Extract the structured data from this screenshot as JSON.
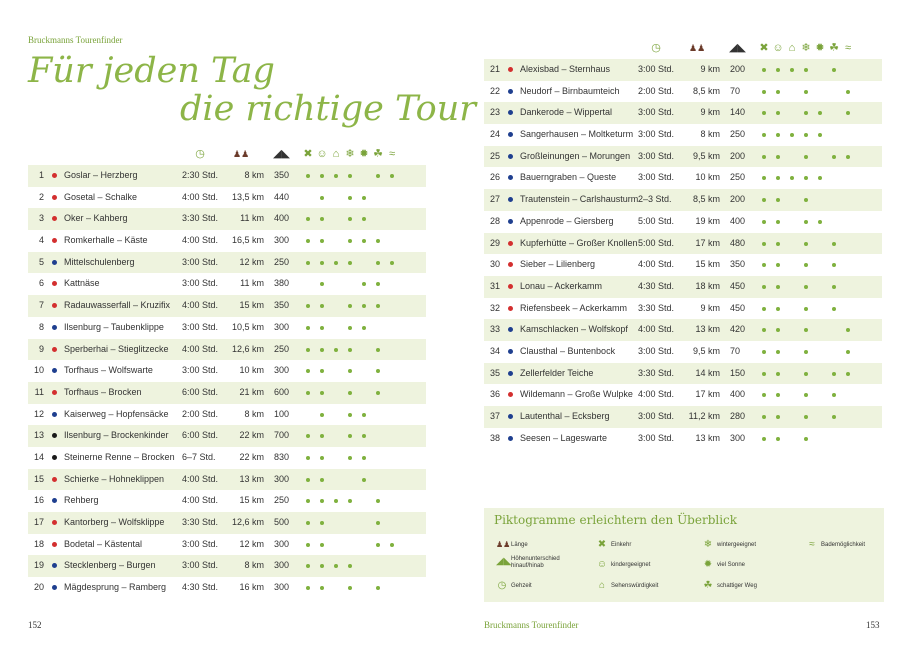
{
  "header_left": "Bruckmanns Tourenfinder",
  "title_line1": "Für jeden Tag",
  "title_line2": "die richtige Tour",
  "footer_left_page": "152",
  "footer_center": "Bruckmanns Tourenfinder",
  "footer_right_page": "153",
  "colors": {
    "accent": "#8db548",
    "row_alt": "#eef3de",
    "feature_dot": "#7fb13e",
    "red": "#d32f2f",
    "blue": "#1f3f8f",
    "black": "#1a1a1a"
  },
  "header_icons": [
    "clock-icon",
    "hikers-icon",
    "mountain-icon",
    "cutlery-icon",
    "smiley-icon",
    "landmark-icon",
    "snowflake-icon",
    "sun-icon",
    "shade-tree-icon",
    "bathing-icon"
  ],
  "tours": [
    {
      "n": "1",
      "color": "red",
      "name": "Goslar – Herzberg",
      "time": "2:30 Std.",
      "km": "8 km",
      "hm": "350",
      "f": [
        1,
        1,
        1,
        1,
        0,
        1,
        1
      ]
    },
    {
      "n": "2",
      "color": "red",
      "name": "Gosetal – Schalke",
      "time": "4:00 Std.",
      "km": "13,5 km",
      "hm": "440",
      "f": [
        0,
        1,
        0,
        1,
        1,
        0,
        0
      ]
    },
    {
      "n": "3",
      "color": "red",
      "name": "Oker – Kahberg",
      "time": "3:30 Std.",
      "km": "11 km",
      "hm": "400",
      "f": [
        1,
        1,
        0,
        1,
        1,
        0,
        0
      ]
    },
    {
      "n": "4",
      "color": "red",
      "name": "Romkerhalle – Käste",
      "time": "4:00 Std.",
      "km": "16,5 km",
      "hm": "300",
      "f": [
        1,
        1,
        0,
        1,
        1,
        1,
        0
      ]
    },
    {
      "n": "5",
      "color": "blue",
      "name": "Mittelschulenberg",
      "time": "3:00 Std.",
      "km": "12 km",
      "hm": "250",
      "f": [
        1,
        1,
        1,
        1,
        0,
        1,
        1
      ]
    },
    {
      "n": "6",
      "color": "red",
      "name": "Kattnäse",
      "time": "3:00 Std.",
      "km": "11 km",
      "hm": "380",
      "f": [
        0,
        1,
        0,
        0,
        1,
        1,
        0
      ]
    },
    {
      "n": "7",
      "color": "red",
      "name": "Radauwasserfall – Kruzifix",
      "time": "4:00 Std.",
      "km": "15 km",
      "hm": "350",
      "f": [
        1,
        1,
        0,
        1,
        1,
        1,
        0
      ]
    },
    {
      "n": "8",
      "color": "blue",
      "name": "Ilsenburg – Taubenklippe",
      "time": "3:00 Std.",
      "km": "10,5 km",
      "hm": "300",
      "f": [
        1,
        1,
        0,
        1,
        1,
        0,
        0
      ]
    },
    {
      "n": "9",
      "color": "red",
      "name": "Sperberhai – Stieglitzecke",
      "time": "4:00 Std.",
      "km": "12,6 km",
      "hm": "250",
      "f": [
        1,
        1,
        1,
        1,
        0,
        1,
        0
      ]
    },
    {
      "n": "10",
      "color": "blue",
      "name": "Torfhaus – Wolfswarte",
      "time": "3:00 Std.",
      "km": "10 km",
      "hm": "300",
      "f": [
        1,
        1,
        0,
        1,
        0,
        1,
        0
      ]
    },
    {
      "n": "11",
      "color": "red",
      "name": "Torfhaus – Brocken",
      "time": "6:00 Std.",
      "km": "21 km",
      "hm": "600",
      "f": [
        1,
        1,
        0,
        1,
        0,
        1,
        0
      ]
    },
    {
      "n": "12",
      "color": "blue",
      "name": "Kaiserweg – Hopfensäcke",
      "time": "2:00 Std.",
      "km": "8 km",
      "hm": "100",
      "f": [
        0,
        1,
        0,
        1,
        1,
        0,
        0
      ]
    },
    {
      "n": "13",
      "color": "black",
      "name": "Ilsenburg – Brockenkinder",
      "time": "6:00 Std.",
      "km": "22 km",
      "hm": "700",
      "f": [
        1,
        1,
        0,
        1,
        1,
        0,
        0
      ]
    },
    {
      "n": "14",
      "color": "black",
      "name": "Steinerne Renne – Brocken",
      "time": "6–7 Std.",
      "km": "22 km",
      "hm": "830",
      "f": [
        1,
        1,
        0,
        1,
        1,
        0,
        0
      ]
    },
    {
      "n": "15",
      "color": "red",
      "name": "Schierke – Hohneklippen",
      "time": "4:00 Std.",
      "km": "13 km",
      "hm": "300",
      "f": [
        1,
        1,
        0,
        0,
        1,
        0,
        0
      ]
    },
    {
      "n": "16",
      "color": "blue",
      "name": "Rehberg",
      "time": "4:00 Std.",
      "km": "15 km",
      "hm": "250",
      "f": [
        1,
        1,
        1,
        1,
        0,
        1,
        0
      ]
    },
    {
      "n": "17",
      "color": "red",
      "name": "Kantorberg – Wolfsklippe",
      "time": "3:30 Std.",
      "km": "12,6 km",
      "hm": "500",
      "f": [
        1,
        1,
        0,
        0,
        0,
        1,
        0
      ]
    },
    {
      "n": "18",
      "color": "red",
      "name": "Bodetal – Kästental",
      "time": "3:00 Std.",
      "km": "12 km",
      "hm": "300",
      "f": [
        1,
        1,
        0,
        0,
        0,
        1,
        1
      ]
    },
    {
      "n": "19",
      "color": "blue",
      "name": "Stecklenberg – Burgen",
      "time": "3:00 Std.",
      "km": "8 km",
      "hm": "300",
      "f": [
        1,
        1,
        1,
        1,
        0,
        0,
        0
      ]
    },
    {
      "n": "20",
      "color": "blue",
      "name": "Mägdesprung – Ramberg",
      "time": "4:30 Std.",
      "km": "16 km",
      "hm": "300",
      "f": [
        1,
        1,
        0,
        1,
        0,
        1,
        0
      ]
    },
    {
      "n": "21",
      "color": "red",
      "name": "Alexisbad – Sternhaus",
      "time": "3:00 Std.",
      "km": "9 km",
      "hm": "200",
      "f": [
        1,
        1,
        1,
        1,
        0,
        1,
        0
      ]
    },
    {
      "n": "22",
      "color": "blue",
      "name": "Neudorf – Birnbaumteich",
      "time": "2:00 Std.",
      "km": "8,5 km",
      "hm": "70",
      "f": [
        1,
        1,
        0,
        1,
        0,
        0,
        1
      ]
    },
    {
      "n": "23",
      "color": "blue",
      "name": "Dankerode – Wippertal",
      "time": "3:00 Std.",
      "km": "9 km",
      "hm": "140",
      "f": [
        1,
        1,
        0,
        1,
        1,
        0,
        1
      ]
    },
    {
      "n": "24",
      "color": "blue",
      "name": "Sangerhausen – Moltketurm",
      "time": "3:00 Std.",
      "km": "8 km",
      "hm": "250",
      "f": [
        1,
        1,
        1,
        1,
        1,
        0,
        0
      ]
    },
    {
      "n": "25",
      "color": "blue",
      "name": "Großleinungen – Morungen",
      "time": "3:00 Std.",
      "km": "9,5 km",
      "hm": "200",
      "f": [
        1,
        1,
        0,
        1,
        0,
        1,
        1
      ]
    },
    {
      "n": "26",
      "color": "blue",
      "name": "Bauerngraben – Queste",
      "time": "3:00 Std.",
      "km": "10 km",
      "hm": "250",
      "f": [
        1,
        1,
        1,
        1,
        1,
        0,
        0
      ]
    },
    {
      "n": "27",
      "color": "blue",
      "name": "Trautenstein – Carlshausturm",
      "time": "2–3 Std.",
      "km": "8,5 km",
      "hm": "200",
      "f": [
        1,
        1,
        0,
        1,
        0,
        0,
        0
      ]
    },
    {
      "n": "28",
      "color": "blue",
      "name": "Appenrode – Giersberg",
      "time": "5:00 Std.",
      "km": "19 km",
      "hm": "400",
      "f": [
        1,
        1,
        0,
        1,
        1,
        0,
        0
      ]
    },
    {
      "n": "29",
      "color": "red",
      "name": "Kupferhütte – Großer Knollen",
      "time": "5:00 Std.",
      "km": "17 km",
      "hm": "480",
      "f": [
        1,
        1,
        0,
        1,
        0,
        1,
        0
      ]
    },
    {
      "n": "30",
      "color": "red",
      "name": "Sieber – Lilienberg",
      "time": "4:00 Std.",
      "km": "15 km",
      "hm": "350",
      "f": [
        1,
        1,
        0,
        1,
        0,
        1,
        0
      ]
    },
    {
      "n": "31",
      "color": "red",
      "name": "Lonau – Ackerkamm",
      "time": "4:30 Std.",
      "km": "18 km",
      "hm": "450",
      "f": [
        1,
        1,
        0,
        1,
        0,
        1,
        0
      ]
    },
    {
      "n": "32",
      "color": "red",
      "name": "Riefensbeek – Ackerkamm",
      "time": "3:30 Std.",
      "km": "9 km",
      "hm": "450",
      "f": [
        1,
        1,
        0,
        1,
        0,
        1,
        0
      ]
    },
    {
      "n": "33",
      "color": "blue",
      "name": "Kamschlacken – Wolfskopf",
      "time": "4:00 Std.",
      "km": "13 km",
      "hm": "420",
      "f": [
        1,
        1,
        0,
        1,
        0,
        0,
        1
      ]
    },
    {
      "n": "34",
      "color": "blue",
      "name": "Clausthal – Buntenbock",
      "time": "3:00 Std.",
      "km": "9,5 km",
      "hm": "70",
      "f": [
        1,
        1,
        0,
        1,
        0,
        0,
        1
      ]
    },
    {
      "n": "35",
      "color": "blue",
      "name": "Zellerfelder Teiche",
      "time": "3:30 Std.",
      "km": "14 km",
      "hm": "150",
      "f": [
        1,
        1,
        0,
        1,
        0,
        1,
        1
      ]
    },
    {
      "n": "36",
      "color": "red",
      "name": "Wildemann – Große Wulpke",
      "time": "4:00 Std.",
      "km": "17 km",
      "hm": "400",
      "f": [
        1,
        1,
        0,
        1,
        0,
        1,
        0
      ]
    },
    {
      "n": "37",
      "color": "blue",
      "name": "Lautenthal – Ecksberg",
      "time": "3:00 Std.",
      "km": "11,2 km",
      "hm": "280",
      "f": [
        1,
        1,
        0,
        1,
        0,
        1,
        0
      ]
    },
    {
      "n": "38",
      "color": "blue",
      "name": "Seesen – Lageswarte",
      "time": "3:00 Std.",
      "km": "13 km",
      "hm": "300",
      "f": [
        1,
        1,
        0,
        1,
        0,
        0,
        0
      ]
    }
  ],
  "legend": {
    "title": "Piktogramme erleichtern den Überblick",
    "items": [
      {
        "icon": "hikers-icon",
        "label": "Länge"
      },
      {
        "icon": "mountain-icon",
        "label": "Höhenunterschied hinauf/hinab"
      },
      {
        "icon": "clock-icon",
        "label": "Gehzeit"
      },
      {
        "icon": "cutlery-icon",
        "label": "Einkehr"
      },
      {
        "icon": "smiley-icon",
        "label": "kindergeeignet"
      },
      {
        "icon": "landmark-icon",
        "label": "Sehenswürdigkeit"
      },
      {
        "icon": "snowflake-icon",
        "label": "wintergeeignet"
      },
      {
        "icon": "sun-icon",
        "label": "viel Sonne"
      },
      {
        "icon": "shade-tree-icon",
        "label": "schattiger Weg"
      },
      {
        "icon": "bathing-icon",
        "label": "Bademöglichkeit"
      }
    ]
  }
}
